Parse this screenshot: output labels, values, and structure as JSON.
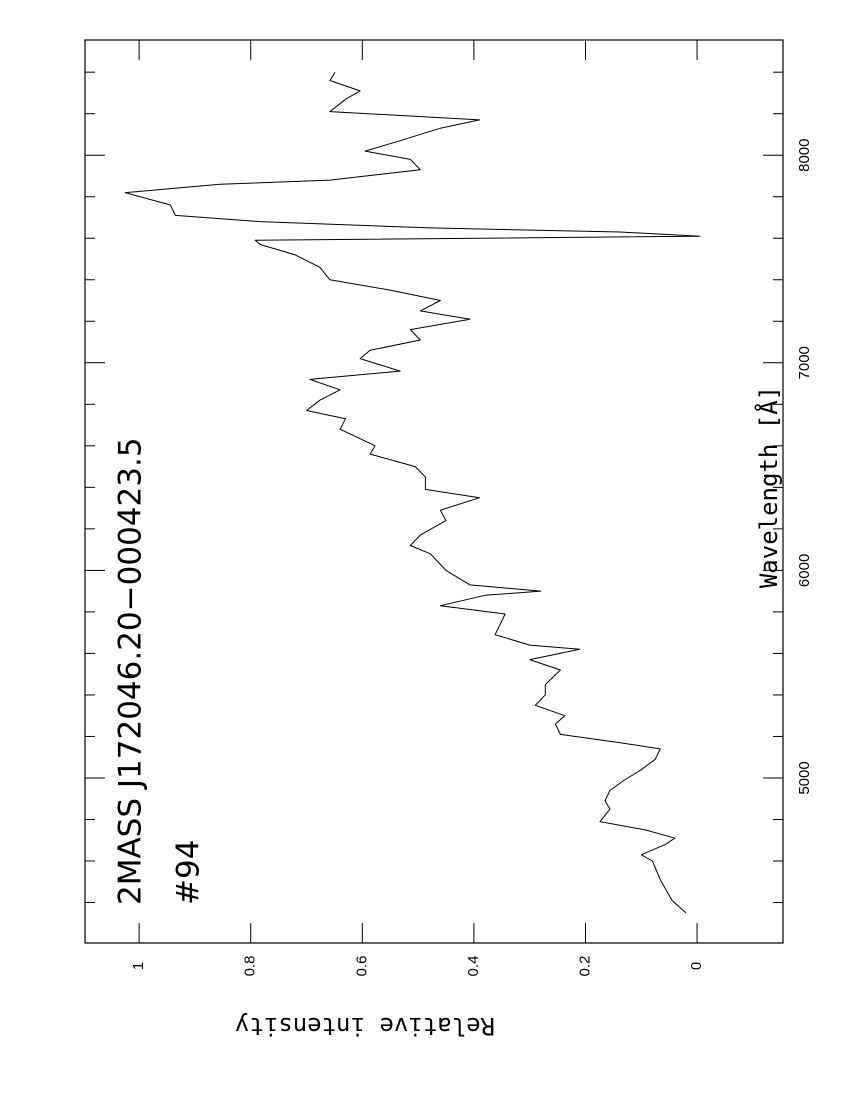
{
  "chart_data": {
    "type": "line",
    "title": "2MASS J172046.20−000423.5",
    "subtitle": "#94",
    "xlabel": "Wavelength  [Å]",
    "ylabel": "Relative intensity",
    "color": "#000000",
    "x": [
      4350,
      4410,
      4510,
      4600,
      4630,
      4680,
      4710,
      4750,
      4790,
      4850,
      4890,
      4940,
      4990,
      5040,
      5090,
      5140,
      5170,
      5210,
      5260,
      5300,
      5350,
      5400,
      5450,
      5520,
      5570,
      5620,
      5640,
      5690,
      5740,
      5790,
      5830,
      5880,
      5900,
      5930,
      6000,
      6080,
      6120,
      6170,
      6240,
      6290,
      6350,
      6390,
      6450,
      6500,
      6560,
      6600,
      6680,
      6730,
      6770,
      6820,
      6870,
      6920,
      6960,
      7020,
      7060,
      7110,
      7160,
      7210,
      7250,
      7300,
      7350,
      7400,
      7460,
      7520,
      7570,
      7590,
      7610,
      7630,
      7650,
      7680,
      7710,
      7760,
      7820,
      7860,
      7880,
      7930,
      7980,
      8020,
      8070,
      8130,
      8170,
      8210,
      8270,
      8310,
      8360,
      8400
    ],
    "values": [
      0.02,
      0.045,
      0.066,
      0.08,
      0.1,
      0.057,
      0.04,
      0.093,
      0.174,
      0.156,
      0.165,
      0.156,
      0.13,
      0.1,
      0.075,
      0.066,
      0.138,
      0.245,
      0.254,
      0.237,
      0.29,
      0.272,
      0.272,
      0.245,
      0.3,
      0.21,
      0.3,
      0.362,
      0.353,
      0.344,
      0.46,
      0.38,
      0.28,
      0.407,
      0.45,
      0.478,
      0.514,
      0.496,
      0.45,
      0.46,
      0.39,
      0.487,
      0.487,
      0.505,
      0.586,
      0.577,
      0.64,
      0.63,
      0.7,
      0.676,
      0.64,
      0.694,
      0.532,
      0.604,
      0.586,
      0.496,
      0.514,
      0.407,
      0.496,
      0.46,
      0.55,
      0.658,
      0.676,
      0.72,
      0.783,
      0.792,
      -0.005,
      0.138,
      0.478,
      0.783,
      0.935,
      0.944,
      1.025,
      0.855,
      0.658,
      0.496,
      0.514,
      0.595,
      0.532,
      0.46,
      0.39,
      0.658,
      0.63,
      0.604,
      0.658,
      0.649
    ],
    "xlim": [
      4205,
      8555
    ],
    "ylim": [
      -0.154,
      1.097
    ],
    "xticks": [
      5000,
      6000,
      7000,
      8000
    ],
    "x_minor_ticks": [
      4400,
      4600,
      4800,
      5200,
      5400,
      5600,
      5800,
      6200,
      6400,
      6600,
      6800,
      7200,
      7400,
      7600,
      7800,
      8200,
      8400
    ],
    "yticks": [
      0,
      0.2,
      0.4,
      0.6,
      0.8,
      1
    ]
  }
}
